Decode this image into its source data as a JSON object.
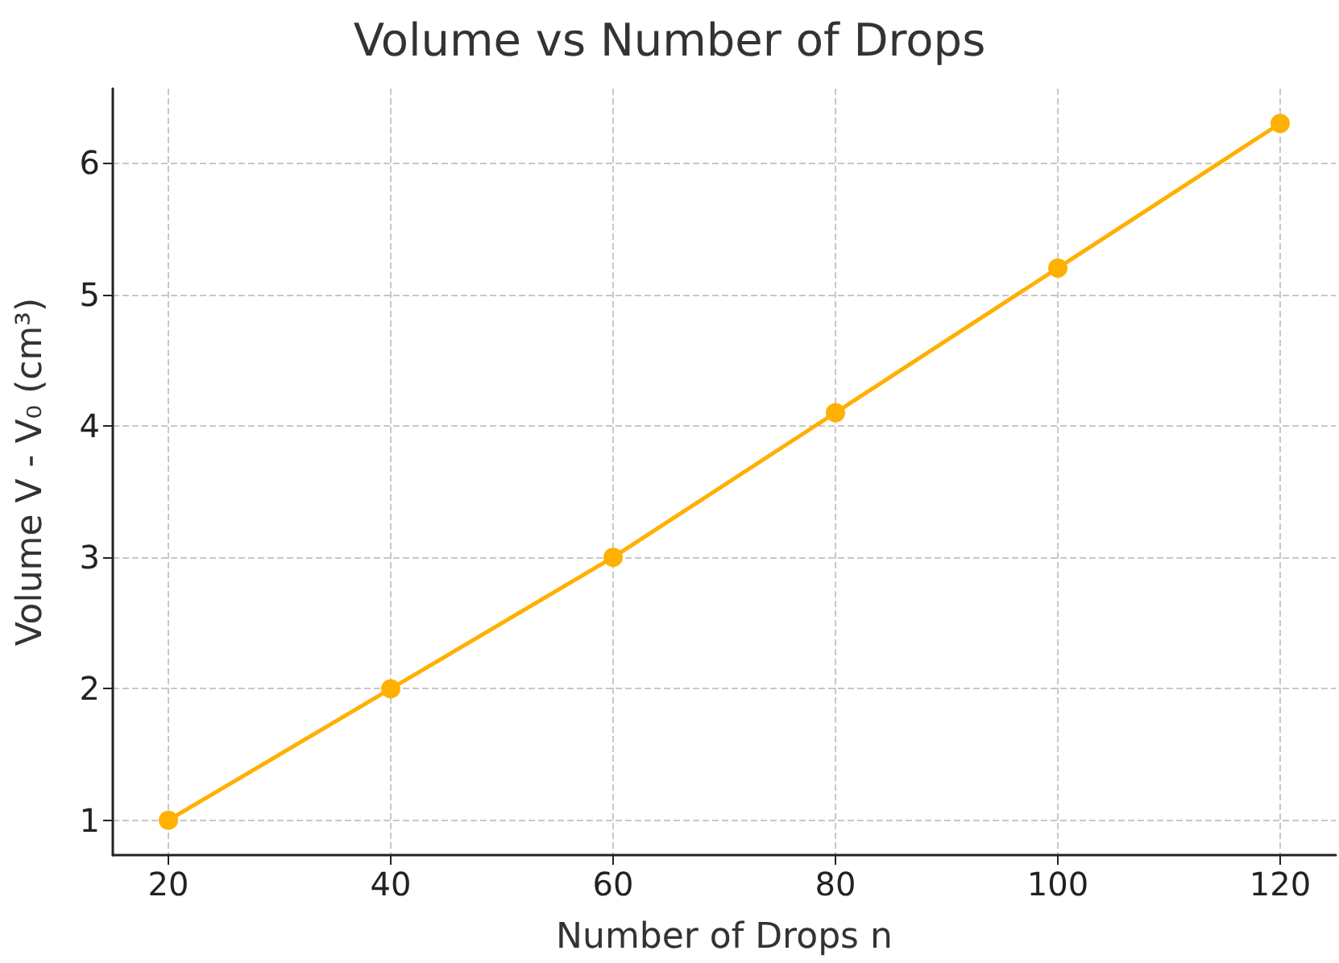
{
  "chart_data": {
    "type": "line",
    "title": "Volume vs Number of Drops",
    "xlabel": "Number of Drops n",
    "ylabel": "Volume V - V₀ (cm³)",
    "x": [
      20,
      40,
      60,
      80,
      100,
      120
    ],
    "series": [
      {
        "color": "#ffb000",
        "values": [
          1,
          2,
          3,
          4.1,
          5.2,
          6.3
        ]
      }
    ],
    "xlim": [
      15,
      125
    ],
    "xticks": [
      20,
      40,
      60,
      80,
      100,
      120
    ],
    "ylim": [
      0.735,
      6.565
    ],
    "yticks": [
      1,
      2,
      3,
      4,
      5,
      6
    ],
    "grid": true,
    "marker": "circle",
    "line_style": "solid"
  }
}
